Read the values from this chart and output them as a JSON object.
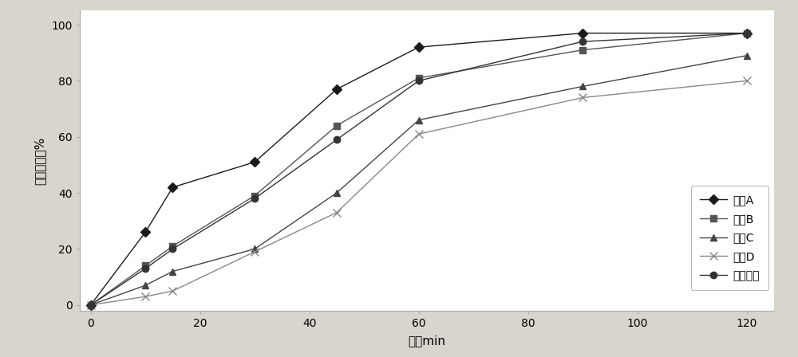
{
  "series": {
    "处方A": {
      "x": [
        0,
        10,
        15,
        30,
        45,
        60,
        90,
        120
      ],
      "y": [
        0,
        26,
        42,
        51,
        77,
        92,
        97,
        97
      ],
      "color": "#1a1a1a",
      "marker": "D",
      "markersize": 6,
      "linestyle": "-"
    },
    "处方B": {
      "x": [
        0,
        10,
        15,
        30,
        45,
        60,
        90,
        120
      ],
      "y": [
        0,
        14,
        21,
        39,
        64,
        81,
        91,
        97
      ],
      "color": "#555555",
      "marker": "s",
      "markersize": 6,
      "linestyle": "-"
    },
    "处方C": {
      "x": [
        0,
        10,
        15,
        30,
        45,
        60,
        90,
        120
      ],
      "y": [
        0,
        7,
        12,
        20,
        40,
        66,
        78,
        89
      ],
      "color": "#444444",
      "marker": "^",
      "markersize": 6,
      "linestyle": "-"
    },
    "处方D": {
      "x": [
        0,
        10,
        15,
        30,
        45,
        60,
        90,
        120
      ],
      "y": [
        0,
        3,
        5,
        19,
        33,
        61,
        74,
        80
      ],
      "color": "#888888",
      "marker": "x",
      "markersize": 7,
      "linestyle": "-"
    },
    "原研制剂": {
      "x": [
        0,
        10,
        15,
        30,
        45,
        60,
        90,
        120
      ],
      "y": [
        0,
        13,
        20,
        38,
        59,
        80,
        94,
        97
      ],
      "color": "#333333",
      "marker": "o",
      "markersize": 6,
      "linestyle": "-"
    }
  },
  "xlabel": "时间min",
  "ylabel": "累积溶出度%",
  "xlim": [
    -2,
    125
  ],
  "ylim": [
    -2,
    105
  ],
  "xticks": [
    0,
    20,
    40,
    60,
    80,
    100,
    120
  ],
  "yticks": [
    0,
    20,
    40,
    60,
    80,
    100
  ],
  "legend_order": [
    "处方A",
    "处方B",
    "处方C",
    "处方D",
    "原研制剂"
  ],
  "figure_facecolor": "#d8d5cc",
  "axes_facecolor": "#ffffff"
}
